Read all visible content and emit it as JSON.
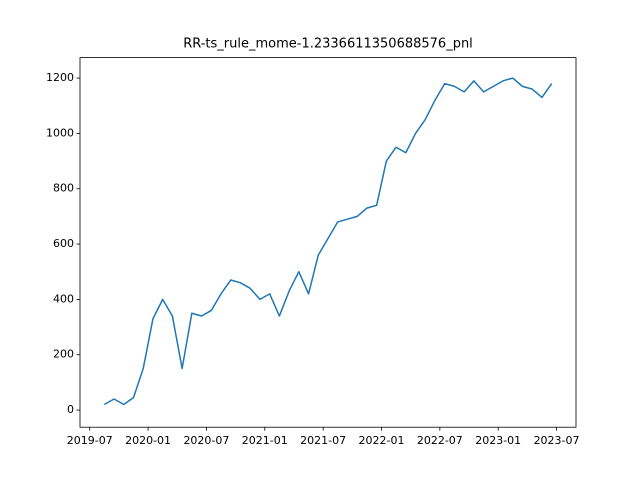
{
  "chart_data": {
    "type": "line",
    "title": "RR-ts_rule_mome-1.2336611350688576_pnl",
    "x": [
      "2019-08",
      "2019-09",
      "2019-10",
      "2019-11",
      "2019-12",
      "2020-01",
      "2020-02",
      "2020-03",
      "2020-04",
      "2020-05",
      "2020-06",
      "2020-07",
      "2020-08",
      "2020-09",
      "2020-10",
      "2020-11",
      "2020-12",
      "2021-01",
      "2021-02",
      "2021-03",
      "2021-04",
      "2021-05",
      "2021-06",
      "2021-07",
      "2021-08",
      "2021-09",
      "2021-10",
      "2021-11",
      "2021-12",
      "2022-01",
      "2022-02",
      "2022-03",
      "2022-04",
      "2022-05",
      "2022-06",
      "2022-07",
      "2022-08",
      "2022-09",
      "2022-10",
      "2022-11",
      "2022-12",
      "2023-01",
      "2023-02",
      "2023-03",
      "2023-04",
      "2023-05",
      "2023-06"
    ],
    "series": [
      {
        "name": "pnl",
        "color": "#1f77b4",
        "values": [
          20,
          40,
          20,
          45,
          150,
          330,
          400,
          340,
          150,
          350,
          340,
          360,
          420,
          470,
          460,
          440,
          400,
          420,
          340,
          430,
          500,
          420,
          560,
          620,
          680,
          690,
          700,
          730,
          740,
          900,
          950,
          930,
          1000,
          1050,
          1120,
          1180,
          1170,
          1150,
          1190,
          1150,
          1170,
          1190,
          1200,
          1170,
          1160,
          1130,
          1180
        ]
      }
    ],
    "xlim": [
      "2019-06",
      "2023-09"
    ],
    "xticks": [
      "2019-07",
      "2020-01",
      "2020-07",
      "2021-01",
      "2021-07",
      "2022-01",
      "2022-07",
      "2023-01",
      "2023-07"
    ],
    "ylim": [
      -62,
      1274
    ],
    "yticks": [
      0,
      200,
      400,
      600,
      800,
      1000,
      1200
    ]
  }
}
